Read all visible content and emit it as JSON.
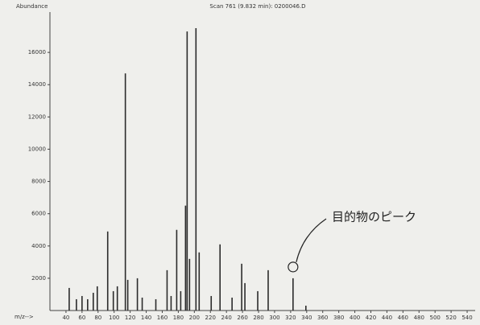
{
  "chart_data": {
    "type": "bar",
    "title": "Scan 761 (9.832 min): 0200046.D",
    "y_label": "Abundance",
    "x_label": "m/z-->",
    "annotation": "目的物のピーク",
    "color": "#2b2b2b",
    "x": [
      44,
      53,
      60,
      67,
      74,
      79,
      92,
      99,
      104,
      114,
      117,
      129,
      135,
      152,
      166,
      171,
      178,
      183,
      189,
      191,
      194,
      202,
      206,
      221,
      232,
      247,
      259,
      263,
      279,
      292,
      323,
      339
    ],
    "values": [
      1400,
      700,
      900,
      700,
      1100,
      1500,
      4900,
      1200,
      1500,
      14700,
      1900,
      2000,
      800,
      700,
      2500,
      900,
      5000,
      1200,
      6500,
      17300,
      3200,
      17500,
      3600,
      900,
      4100,
      800,
      2900,
      1700,
      1200,
      2500,
      2000,
      300
    ],
    "xlim": [
      20,
      550
    ],
    "ylim": [
      0,
      18500
    ],
    "xticks": [
      40,
      60,
      80,
      100,
      120,
      140,
      160,
      180,
      200,
      220,
      240,
      260,
      280,
      300,
      320,
      340,
      360,
      380,
      400,
      420,
      440,
      460,
      480,
      500,
      520,
      540
    ],
    "yticks": [
      2000,
      4000,
      6000,
      8000,
      10000,
      12000,
      14000,
      16000
    ],
    "annotation_x": 323
  }
}
